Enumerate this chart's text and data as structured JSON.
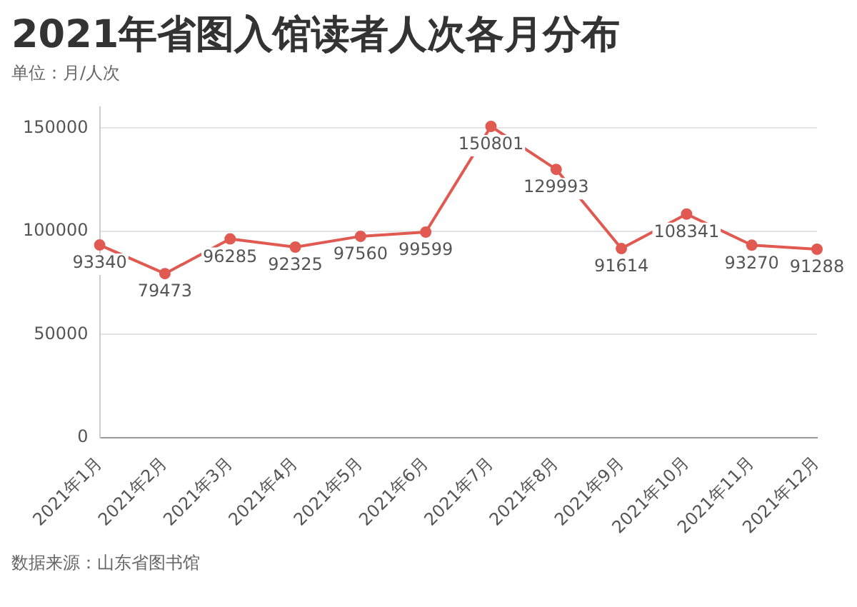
{
  "chart_data": {
    "type": "line",
    "title": "2021年省图入馆读者人次各月分布",
    "subtitle": "单位：月/人次",
    "annotations": [
      "数据来源：山东省图书馆"
    ],
    "categories": [
      "2021年1月",
      "2021年2月",
      "2021年3月",
      "2021年4月",
      "2021年5月",
      "2021年6月",
      "2021年7月",
      "2021年8月",
      "2021年9月",
      "2021年10月",
      "2021年11月",
      "2021年12月"
    ],
    "values": [
      93340,
      79473,
      96285,
      92325,
      97560,
      99599,
      150801,
      129993,
      91614,
      108341,
      93270,
      91288
    ],
    "color": "#e05a52",
    "ylim": [
      0,
      160000
    ],
    "yticks": [
      0,
      50000,
      100000,
      150000
    ],
    "grid": "y",
    "marker": "circle",
    "line_style": "solid",
    "data_labels": true,
    "legend": false
  }
}
